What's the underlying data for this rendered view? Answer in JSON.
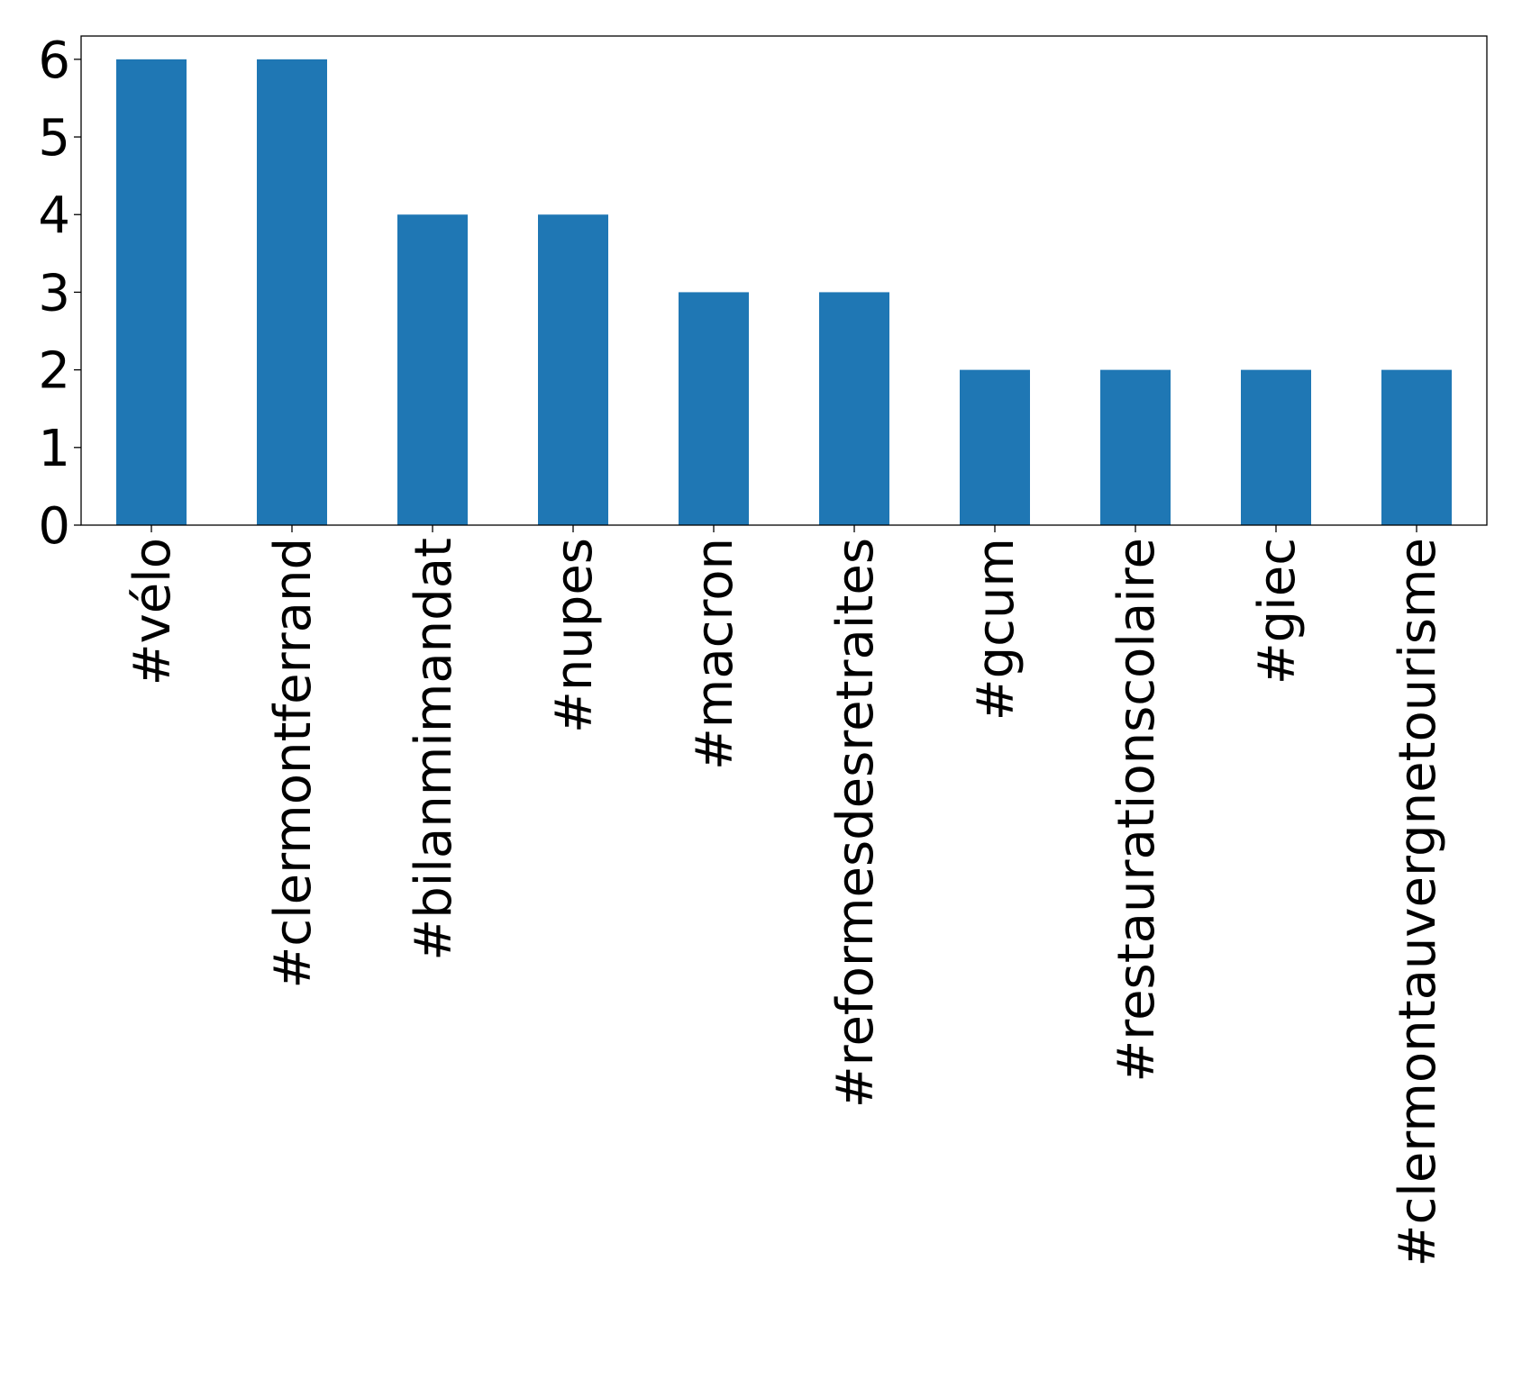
{
  "chart_data": {
    "type": "bar",
    "title": "",
    "xlabel": "",
    "ylabel": "",
    "categories": [
      "#vélo",
      "#clermontferrand",
      "#bilanmimandat",
      "#nupes",
      "#macron",
      "#reformesdesretraites",
      "#gcum",
      "#restaurationscolaire",
      "#giec",
      "#clermontauvergnetourisme"
    ],
    "values": [
      6,
      6,
      4,
      4,
      3,
      3,
      2,
      2,
      2,
      2
    ],
    "ylim": [
      0,
      6.3
    ],
    "yticks": [
      "0",
      "1",
      "2",
      "3",
      "4",
      "5",
      "6"
    ],
    "grid": false,
    "legend": "none",
    "colors": {
      "bar": "#1f77b4",
      "axes": "#000000",
      "background": "#ffffff"
    }
  }
}
